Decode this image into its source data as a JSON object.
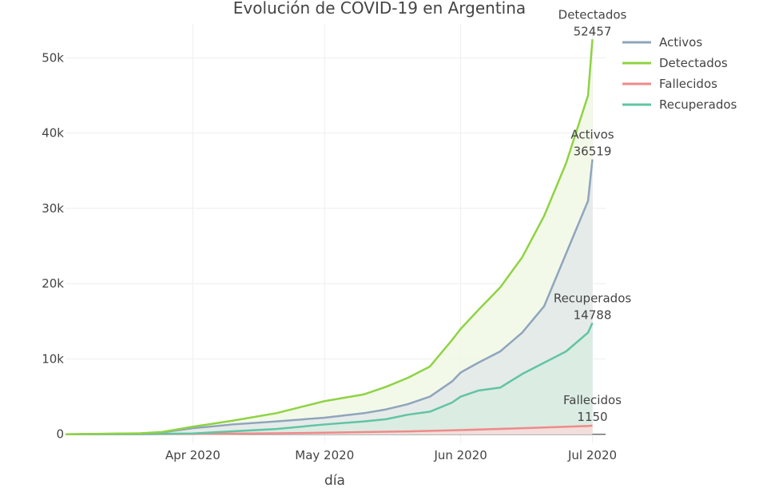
{
  "chart_data": {
    "type": "area",
    "title": "Evolución de COVID-19 en Argentina",
    "xlabel": "día",
    "ylabel": "",
    "x_range": [
      "2020-03-03",
      "2020-07-04"
    ],
    "ylim": [
      -1200,
      54500
    ],
    "grid": true,
    "legend_position": "top-right",
    "x_ticks": [
      {
        "date": "2020-04-01",
        "label": "Apr 2020"
      },
      {
        "date": "2020-05-01",
        "label": "May 2020"
      },
      {
        "date": "2020-06-01",
        "label": "Jun 2020"
      },
      {
        "date": "2020-07-01",
        "label": "Jul 2020"
      }
    ],
    "y_ticks": [
      {
        "value": 0,
        "label": "0"
      },
      {
        "value": 10000,
        "label": "10k"
      },
      {
        "value": 20000,
        "label": "20k"
      },
      {
        "value": 30000,
        "label": "30k"
      },
      {
        "value": 40000,
        "label": "40k"
      },
      {
        "value": 50000,
        "label": "50k"
      }
    ],
    "series": [
      {
        "name": "Activos",
        "color": "#8fa5bd",
        "fill": "#e2e9e8",
        "points": [
          [
            "2020-03-03",
            0
          ],
          [
            "2020-03-20",
            100
          ],
          [
            "2020-03-25",
            250
          ],
          [
            "2020-04-01",
            800
          ],
          [
            "2020-04-10",
            1300
          ],
          [
            "2020-04-20",
            1700
          ],
          [
            "2020-05-01",
            2200
          ],
          [
            "2020-05-10",
            2800
          ],
          [
            "2020-05-15",
            3300
          ],
          [
            "2020-05-20",
            4000
          ],
          [
            "2020-05-25",
            5000
          ],
          [
            "2020-05-30",
            7000
          ],
          [
            "2020-06-01",
            8200
          ],
          [
            "2020-06-05",
            9500
          ],
          [
            "2020-06-10",
            11000
          ],
          [
            "2020-06-15",
            13500
          ],
          [
            "2020-06-20",
            17000
          ],
          [
            "2020-06-25",
            24000
          ],
          [
            "2020-06-30",
            31000
          ],
          [
            "2020-07-01",
            36519
          ]
        ]
      },
      {
        "name": "Detectados",
        "color": "#8ed343",
        "fill": "#f1f8e4",
        "points": [
          [
            "2020-03-03",
            0
          ],
          [
            "2020-03-20",
            130
          ],
          [
            "2020-03-25",
            300
          ],
          [
            "2020-04-01",
            1000
          ],
          [
            "2020-04-10",
            1800
          ],
          [
            "2020-04-20",
            2800
          ],
          [
            "2020-05-01",
            4400
          ],
          [
            "2020-05-10",
            5300
          ],
          [
            "2020-05-15",
            6300
          ],
          [
            "2020-05-20",
            7500
          ],
          [
            "2020-05-25",
            9000
          ],
          [
            "2020-05-30",
            12500
          ],
          [
            "2020-06-01",
            14000
          ],
          [
            "2020-06-05",
            16500
          ],
          [
            "2020-06-10",
            19500
          ],
          [
            "2020-06-15",
            23500
          ],
          [
            "2020-06-20",
            29000
          ],
          [
            "2020-06-25",
            36000
          ],
          [
            "2020-06-30",
            45000
          ],
          [
            "2020-07-01",
            52457
          ]
        ]
      },
      {
        "name": "Fallecidos",
        "color": "#ef8a8a",
        "fill": "#f6dcd8",
        "points": [
          [
            "2020-03-03",
            0
          ],
          [
            "2020-03-20",
            5
          ],
          [
            "2020-04-01",
            30
          ],
          [
            "2020-04-20",
            120
          ],
          [
            "2020-05-01",
            200
          ],
          [
            "2020-05-20",
            380
          ],
          [
            "2020-06-01",
            550
          ],
          [
            "2020-06-15",
            800
          ],
          [
            "2020-06-30",
            1100
          ],
          [
            "2020-07-01",
            1150
          ]
        ]
      },
      {
        "name": "Recuperados",
        "color": "#61c4a4",
        "fill": "#d9ece0",
        "points": [
          [
            "2020-03-03",
            0
          ],
          [
            "2020-03-20",
            20
          ],
          [
            "2020-04-01",
            100
          ],
          [
            "2020-04-20",
            700
          ],
          [
            "2020-05-01",
            1300
          ],
          [
            "2020-05-10",
            1700
          ],
          [
            "2020-05-15",
            2000
          ],
          [
            "2020-05-20",
            2600
          ],
          [
            "2020-05-25",
            3000
          ],
          [
            "2020-05-30",
            4200
          ],
          [
            "2020-06-01",
            5000
          ],
          [
            "2020-06-05",
            5800
          ],
          [
            "2020-06-10",
            6200
          ],
          [
            "2020-06-15",
            8000
          ],
          [
            "2020-06-20",
            9500
          ],
          [
            "2020-06-25",
            11000
          ],
          [
            "2020-06-30",
            13500
          ],
          [
            "2020-07-01",
            14788
          ]
        ]
      }
    ],
    "annotations": [
      {
        "series": "Detectados",
        "name": "Detectados",
        "value": "52457"
      },
      {
        "series": "Activos",
        "name": "Activos",
        "value": "36519"
      },
      {
        "series": "Recuperados",
        "name": "Recuperados",
        "value": "14788"
      },
      {
        "series": "Fallecidos",
        "name": "Fallecidos",
        "value": "1150"
      }
    ]
  }
}
